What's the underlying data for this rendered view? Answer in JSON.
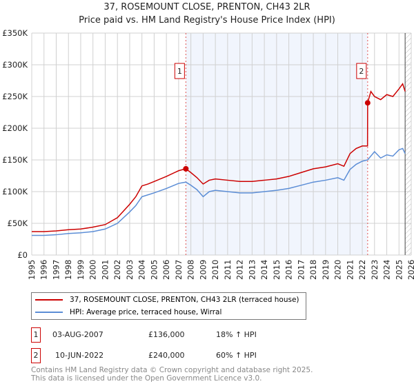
{
  "chart_data": {
    "type": "line",
    "title": "37, ROSEMOUNT CLOSE, PRENTON, CH43 2LR",
    "subtitle": "Price paid vs. HM Land Registry's House Price Index (HPI)",
    "xlim": [
      1995,
      2026
    ],
    "ylim": [
      0,
      350000
    ],
    "x_ticks": [
      "1995",
      "1996",
      "1997",
      "1998",
      "1999",
      "2000",
      "2001",
      "2002",
      "2003",
      "2004",
      "2005",
      "2006",
      "2007",
      "2008",
      "2009",
      "2010",
      "2011",
      "2012",
      "2013",
      "2014",
      "2015",
      "2016",
      "2017",
      "2018",
      "2019",
      "2020",
      "2021",
      "2022",
      "2023",
      "2024",
      "2025",
      "2026"
    ],
    "y_ticks": [
      {
        "v": 0,
        "label": "£0"
      },
      {
        "v": 50000,
        "label": "£50K"
      },
      {
        "v": 100000,
        "label": "£100K"
      },
      {
        "v": 150000,
        "label": "£150K"
      },
      {
        "v": 200000,
        "label": "£200K"
      },
      {
        "v": 250000,
        "label": "£250K"
      },
      {
        "v": 300000,
        "label": "£300K"
      },
      {
        "v": 350000,
        "label": "£350K"
      }
    ],
    "shaded_range": [
      2007.59,
      2022.44
    ],
    "forecast_from": 2025.5,
    "series": [
      {
        "name": "37, ROSEMOUNT CLOSE, PRENTON, CH43 2LR (terraced house)",
        "color": "#cc0000",
        "x": [
          1995,
          1996,
          1997,
          1998,
          1999,
          2000,
          2001,
          2002,
          2003,
          2003.5,
          2004,
          2004.5,
          2005,
          2006,
          2007,
          2007.59,
          2008,
          2008.5,
          2009,
          2009.5,
          2010,
          2011,
          2012,
          2013,
          2014,
          2015,
          2016,
          2017,
          2018,
          2019,
          2020,
          2020.5,
          2021,
          2021.5,
          2022,
          2022.43,
          2022.44,
          2022.7,
          2023,
          2023.5,
          2024,
          2024.5,
          2025,
          2025.3,
          2025.5
        ],
        "y": [
          37000,
          37000,
          38000,
          40000,
          41000,
          44000,
          48000,
          59000,
          80000,
          92000,
          109000,
          112000,
          116000,
          124000,
          133000,
          136000,
          130000,
          122000,
          112000,
          118000,
          120000,
          118000,
          116000,
          116000,
          118000,
          120000,
          124000,
          130000,
          136000,
          139000,
          144000,
          140000,
          160000,
          168000,
          172000,
          172000,
          240000,
          258000,
          250000,
          245000,
          253000,
          250000,
          262000,
          270000,
          258000
        ]
      },
      {
        "name": "HPI: Average price, terraced house, Wirral",
        "color": "#5b8dd6",
        "x": [
          1995,
          1996,
          1997,
          1998,
          1999,
          2000,
          2001,
          2002,
          2003,
          2003.5,
          2004,
          2004.5,
          2005,
          2006,
          2007,
          2007.59,
          2008,
          2008.5,
          2009,
          2009.5,
          2010,
          2011,
          2012,
          2013,
          2014,
          2015,
          2016,
          2017,
          2018,
          2019,
          2020,
          2020.5,
          2021,
          2021.5,
          2022,
          2022.44,
          2023,
          2023.5,
          2024,
          2024.5,
          2025,
          2025.3,
          2025.5
        ],
        "y": [
          31000,
          31000,
          32000,
          34000,
          35000,
          37000,
          41000,
          50000,
          68000,
          78000,
          92000,
          95000,
          98000,
          105000,
          113000,
          115000,
          110000,
          103000,
          92000,
          100000,
          102000,
          100000,
          98000,
          98000,
          100000,
          102000,
          105000,
          110000,
          115000,
          118000,
          122000,
          118000,
          135000,
          143000,
          148000,
          150000,
          163000,
          153000,
          158000,
          156000,
          166000,
          168000,
          160000
        ]
      }
    ],
    "sales": [
      {
        "label": "1",
        "x": 2007.59,
        "y": 136000,
        "date": "03-AUG-2007",
        "price": "£136,000",
        "hpi": "18% ↑ HPI"
      },
      {
        "label": "2",
        "x": 2022.44,
        "y": 240000,
        "date": "10-JUN-2022",
        "price": "£240,000",
        "hpi": "60% ↑ HPI"
      }
    ]
  },
  "footer": [
    "Contains HM Land Registry data © Crown copyright and database right 2025.",
    "This data is licensed under the Open Government Licence v3.0."
  ]
}
